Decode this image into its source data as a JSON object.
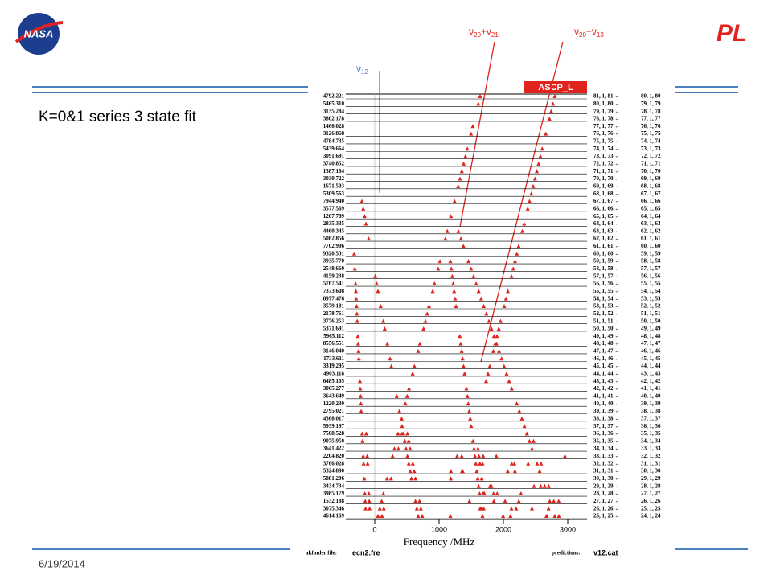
{
  "logo": {
    "left": "NASA",
    "right": "PL"
  },
  "slide": {
    "title": "K=0&1 series 3 state fit",
    "date": "6/19/2014"
  },
  "annotations": [
    {
      "parts": [
        "ν",
        "20",
        "+ν",
        "21"
      ]
    },
    {
      "parts": [
        "ν",
        "20",
        "+ν",
        "13"
      ]
    },
    {
      "parts": [
        "ν",
        "12"
      ]
    }
  ],
  "plot": {
    "header": "ASCP_L",
    "xlabel": "Frequency /MHz",
    "xlim": [
      -400,
      3300
    ],
    "xticks": [
      0,
      1000,
      2000,
      3000
    ],
    "footer": {
      "file_label": "akfinder file:",
      "file": "ecn2.fre",
      "pred_label": "predictions:",
      "pred": "v12.cat"
    },
    "rows": [
      [
        "4792.221",
        "81, 1, 81 ←",
        "80, 1, 80"
      ],
      [
        "5465.310",
        "80, 1, 80 ←",
        "79, 1, 79"
      ],
      [
        "3135.284",
        "79, 1, 79 ←",
        "78, 1, 78"
      ],
      [
        "3802.178",
        "78, 1, 78 ←",
        "77, 1, 77"
      ],
      [
        "1466.028",
        "77, 1, 77 ←",
        "76, 1, 76"
      ],
      [
        "3126.868",
        "76, 1, 76 ←",
        "75, 1, 75"
      ],
      [
        "4784.735",
        "75, 1, 75 ←",
        "74, 1, 74"
      ],
      [
        "5439.664",
        "74, 1, 74 ←",
        "73, 1, 73"
      ],
      [
        "3091.691",
        "73, 1, 73 ←",
        "72, 1, 72"
      ],
      [
        "3740.852",
        "72, 1, 72 ←",
        "71, 1, 71"
      ],
      [
        "1387.184",
        "71, 1, 71 ←",
        "70, 1, 70"
      ],
      [
        "3030.722",
        "70, 1, 70 ←",
        "69, 1, 69"
      ],
      [
        "1671.503",
        "69, 1, 69 ←",
        "68, 1, 68"
      ],
      [
        "5309.563",
        "68, 1, 68 ←",
        "67, 1, 67"
      ],
      [
        "7944.940",
        "67, 1, 67 ←",
        "66, 1, 66"
      ],
      [
        "3577.569",
        "66, 1, 66 ←",
        "65, 1, 65"
      ],
      [
        "1207.789",
        "65, 1, 65 ←",
        "64, 1, 64"
      ],
      [
        "2835.335",
        "64, 1, 64 ←",
        "63, 1, 63"
      ],
      [
        "4460.345",
        "63, 1, 63 ←",
        "62, 1, 62"
      ],
      [
        "5082.856",
        "62, 1, 62 ←",
        "61, 1, 61"
      ],
      [
        "7702.906",
        "61, 1, 61 ←",
        "60, 1, 60"
      ],
      [
        "9320.531",
        "60, 1, 60 ←",
        "59, 1, 59"
      ],
      [
        "3935.770",
        "59, 1, 59 ←",
        "58, 1, 58"
      ],
      [
        "2548.660",
        "58, 1, 58 ←",
        "57, 1, 57"
      ],
      [
        "4159.238",
        "57, 1, 57 ←",
        "56, 1, 56"
      ],
      [
        "5767.541",
        "56, 1, 56 ←",
        "55, 1, 55"
      ],
      [
        "7373.608",
        "55, 1, 55 ←",
        "54, 1, 54"
      ],
      [
        "8977.476",
        "54, 1, 54 ←",
        "53, 1, 53"
      ],
      [
        "3579.181",
        "53, 1, 53 ←",
        "52, 1, 52"
      ],
      [
        "2178.761",
        "52, 1, 52 ←",
        "51, 1, 51"
      ],
      [
        "3776.253",
        "51, 1, 51 ←",
        "50, 1, 50"
      ],
      [
        "5371.691",
        "50, 1, 50 ←",
        "49, 1, 49"
      ],
      [
        "5965.112",
        "49, 1, 49 ←",
        "48, 1, 48"
      ],
      [
        "8556.551",
        "48, 1, 48 ←",
        "47, 1, 47"
      ],
      [
        "3146.040",
        "47, 1, 47 ←",
        "46, 1, 46"
      ],
      [
        "1733.611",
        "46, 1, 46 ←",
        "45, 1, 45"
      ],
      [
        "3319.295",
        "45, 1, 45 ←",
        "44, 1, 44"
      ],
      [
        "4903.118",
        "44, 1, 44 ←",
        "43, 1, 43"
      ],
      [
        "6485.105",
        "43, 1, 43 ←",
        "42, 1, 42"
      ],
      [
        "3065.277",
        "42, 1, 42 ←",
        "41, 1, 41"
      ],
      [
        "3643.649",
        "41, 1, 41 ←",
        "40, 1, 40"
      ],
      [
        "1220.230",
        "40, 1, 40 ←",
        "39, 1, 39"
      ],
      [
        "2795.021",
        "39, 1, 39 ←",
        "38, 1, 38"
      ],
      [
        "4368.017",
        "38, 1, 38 ←",
        "37, 1, 37"
      ],
      [
        "5939.197",
        "37, 1, 37 ←",
        "36, 1, 36"
      ],
      [
        "7508.528",
        "36, 1, 36 ←",
        "35, 1, 35"
      ],
      [
        "9075.950",
        "35, 1, 35 ←",
        "34, 1, 34"
      ],
      [
        "3641.422",
        "34, 1, 34 ←",
        "33, 1, 33"
      ],
      [
        "2204.820",
        "33, 1, 33 ←",
        "32, 1, 32"
      ],
      [
        "3766.028",
        "32, 1, 32 ←",
        "31, 1, 31"
      ],
      [
        "5324.890",
        "31, 1, 31 ←",
        "30, 1, 30"
      ],
      [
        "5881.206",
        "30, 1, 30 ←",
        "29, 1, 29"
      ],
      [
        "3434.734",
        "29, 1, 29 ←",
        "28, 1, 28"
      ],
      [
        "3985.179",
        "28, 1, 28 ←",
        "27, 1, 27"
      ],
      [
        "1532.188",
        "27, 1, 27 ←",
        "26, 1, 26"
      ],
      [
        "3075.346",
        "26, 1, 26 ←",
        "25, 1, 25"
      ],
      [
        "4614.169",
        "25, 1, 25 ←",
        "24, 1, 24"
      ]
    ]
  }
}
